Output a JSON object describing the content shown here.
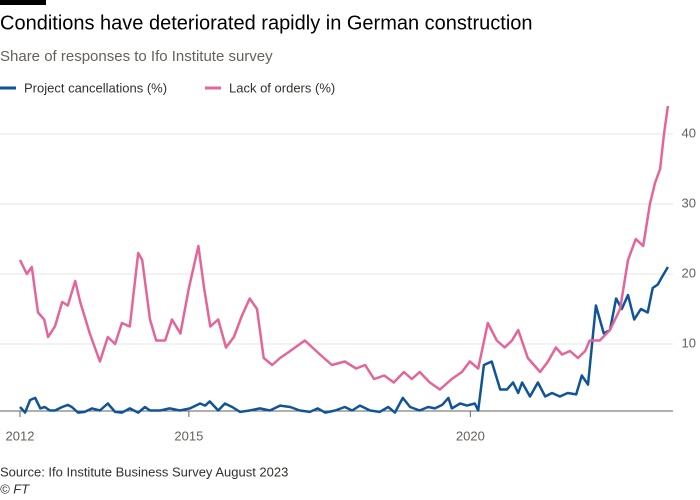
{
  "chart_data": {
    "type": "line",
    "title": "Conditions have deteriorated rapidly in German construction",
    "subtitle": "Share of responses to Ifo Institute survey",
    "source": "Source: Ifo Institute Business Survey August 2023",
    "credit": "© FT",
    "xlim": [
      2012,
      2023.6
    ],
    "xticks": [
      2012,
      2015,
      2020
    ],
    "ylim": [
      0,
      45
    ],
    "yticks": [
      10,
      20,
      30,
      40
    ],
    "grid": true,
    "series": [
      {
        "name": "Project cancellations (%)",
        "color": "#0f5499",
        "x": [
          2012.0,
          2012.09,
          2012.18,
          2012.27,
          2012.36,
          2012.44,
          2012.53,
          2012.62,
          2012.75,
          2012.85,
          2012.92,
          2013.03,
          2013.15,
          2013.28,
          2013.42,
          2013.56,
          2013.69,
          2013.81,
          2013.95,
          2014.1,
          2014.22,
          2014.31,
          2014.49,
          2014.66,
          2014.84,
          2015.02,
          2015.2,
          2015.29,
          2015.37,
          2015.52,
          2015.64,
          2015.77,
          2015.91,
          2016.08,
          2016.26,
          2016.44,
          2016.62,
          2016.8,
          2016.97,
          2017.15,
          2017.29,
          2017.42,
          2017.6,
          2017.77,
          2017.9,
          2018.04,
          2018.22,
          2018.39,
          2018.54,
          2018.66,
          2018.8,
          2018.93,
          2019.1,
          2019.25,
          2019.37,
          2019.5,
          2019.61,
          2019.67,
          2019.82,
          2019.94,
          2020.08,
          2020.14,
          2020.24,
          2020.38,
          2020.53,
          2020.65,
          2020.76,
          2020.85,
          2020.92,
          2021.06,
          2021.2,
          2021.33,
          2021.45,
          2021.59,
          2021.73,
          2021.88,
          2021.98,
          2022.09,
          2022.23,
          2022.37,
          2022.48,
          2022.59,
          2022.69,
          2022.8,
          2022.91,
          2023.03,
          2023.15,
          2023.24,
          2023.33,
          2023.4,
          2023.51
        ],
        "values": [
          1,
          0.2,
          2,
          2.3,
          0.8,
          1,
          0.5,
          0.5,
          1,
          1.3,
          1,
          0.2,
          0.3,
          0.8,
          0.5,
          1.5,
          0.3,
          0.2,
          0.8,
          0.2,
          1,
          0.5,
          0.5,
          0.8,
          0.5,
          0.8,
          1.5,
          1.2,
          1.8,
          0.5,
          1.5,
          1,
          0.3,
          0.5,
          0.8,
          0.5,
          1.2,
          1,
          0.5,
          0.3,
          0.8,
          0.2,
          0.5,
          1,
          0.5,
          1.2,
          0.5,
          0.3,
          1,
          0.2,
          2.3,
          1,
          0.5,
          1,
          0.8,
          1.3,
          2.3,
          0.8,
          1.5,
          1.2,
          1.5,
          0.5,
          7,
          7.5,
          3.5,
          3.5,
          4.5,
          3,
          4.5,
          2.5,
          4.5,
          2.5,
          3,
          2.5,
          3,
          2.8,
          5.5,
          4.2,
          15.5,
          11.5,
          12,
          16.5,
          15,
          17,
          13.5,
          15,
          14.5,
          18,
          18.5,
          19.5,
          21
        ]
      },
      {
        "name": "Lack of orders (%)",
        "color": "#e3659a",
        "x": [
          2012.0,
          2012.12,
          2012.21,
          2012.32,
          2012.43,
          2012.5,
          2012.62,
          2012.75,
          2012.85,
          2012.98,
          2013.07,
          2013.24,
          2013.42,
          2013.56,
          2013.69,
          2013.81,
          2013.95,
          2014.1,
          2014.17,
          2014.31,
          2014.42,
          2014.58,
          2014.7,
          2014.85,
          2015.0,
          2015.17,
          2015.27,
          2015.38,
          2015.52,
          2015.66,
          2015.8,
          2015.94,
          2016.08,
          2016.21,
          2016.33,
          2016.48,
          2016.62,
          2016.8,
          2017.06,
          2017.33,
          2017.54,
          2017.77,
          2017.97,
          2018.13,
          2018.29,
          2018.47,
          2018.64,
          2018.82,
          2018.96,
          2019.1,
          2019.28,
          2019.46,
          2019.67,
          2019.85,
          2019.99,
          2020.14,
          2020.31,
          2020.47,
          2020.61,
          2020.74,
          2020.85,
          2021.02,
          2021.24,
          2021.38,
          2021.52,
          2021.63,
          2021.77,
          2021.91,
          2022.04,
          2022.12,
          2022.3,
          2022.48,
          2022.66,
          2022.8,
          2022.94,
          2023.07,
          2023.19,
          2023.28,
          2023.37,
          2023.44,
          2023.51
        ],
        "values": [
          22,
          20,
          21,
          14.5,
          13.5,
          11,
          12.5,
          16,
          15.5,
          19,
          16,
          11.5,
          7.5,
          11,
          10,
          13,
          12.5,
          23,
          22,
          13.5,
          10.5,
          10.5,
          13.5,
          11.5,
          18,
          24,
          18,
          12.5,
          13.5,
          9.5,
          11,
          14,
          16.5,
          15,
          8,
          7,
          8,
          9,
          10.5,
          8.5,
          7,
          7.5,
          6.5,
          7,
          5,
          5.5,
          4.5,
          6,
          5,
          6,
          4.5,
          3.5,
          5,
          6,
          7.5,
          6.5,
          13,
          10.5,
          9.5,
          10.5,
          12,
          8,
          6,
          7.5,
          9.5,
          8.5,
          9,
          8,
          9,
          10.5,
          10.5,
          12,
          15,
          22,
          25,
          24,
          30,
          33,
          35,
          40,
          44
        ]
      }
    ]
  }
}
